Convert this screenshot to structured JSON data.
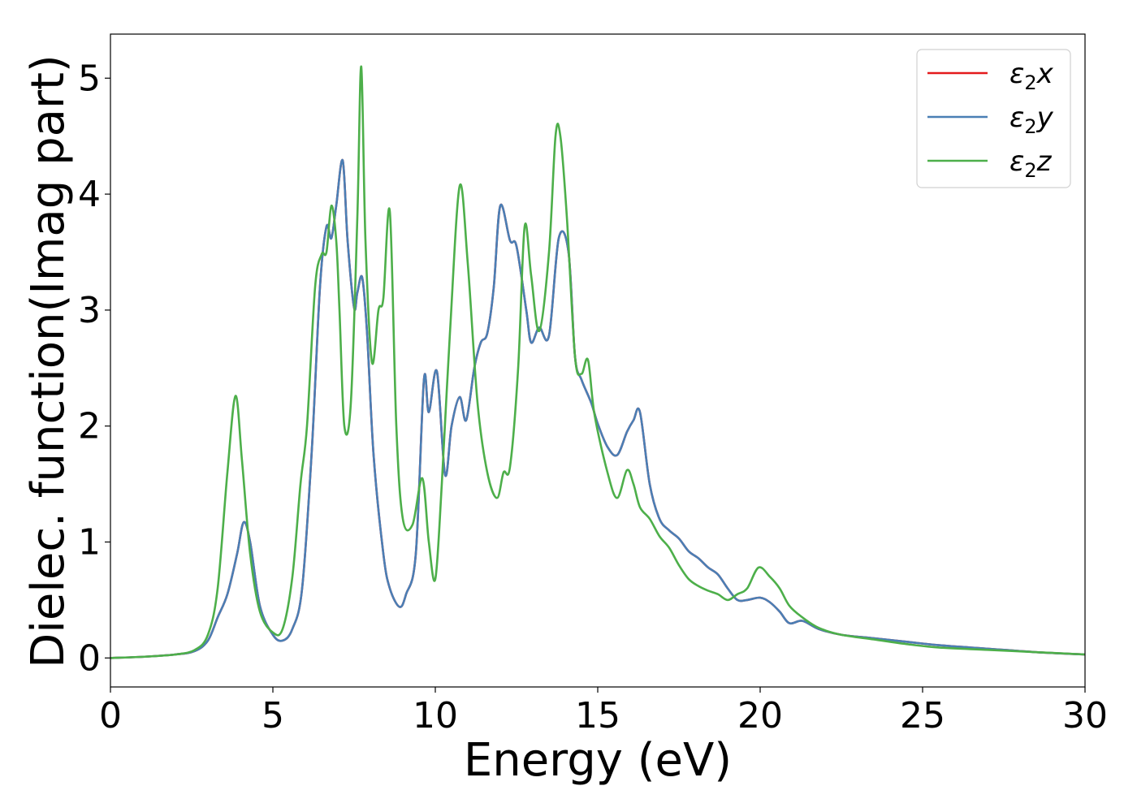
{
  "chart_data": {
    "type": "line",
    "xlabel": "Energy (eV)",
    "ylabel": "Dielec. function(Imag part)",
    "xlim": [
      0,
      30
    ],
    "ylim": [
      -0.25,
      5.38
    ],
    "xticks": [
      0,
      5,
      10,
      15,
      20,
      25,
      30
    ],
    "yticks": [
      0,
      1,
      2,
      3,
      4,
      5
    ],
    "grid": false,
    "legend_position": "top-right",
    "series": [
      {
        "name": "ε2x",
        "legend": {
          "base": "ε",
          "sub": "2",
          "var": "x"
        },
        "color": "#e41a1c",
        "x": [
          0,
          1,
          2,
          2.6,
          3,
          3.3,
          3.6,
          3.9,
          4.1,
          4.3,
          4.6,
          5,
          5.3,
          5.6,
          5.9,
          6.2,
          6.45,
          6.65,
          6.8,
          6.95,
          7.15,
          7.3,
          7.5,
          7.6,
          7.75,
          7.9,
          8.1,
          8.4,
          8.6,
          8.9,
          9.1,
          9.4,
          9.65,
          9.8,
          10.05,
          10.3,
          10.5,
          10.75,
          10.95,
          11.2,
          11.4,
          11.6,
          11.8,
          12,
          12.3,
          12.5,
          12.8,
          12.95,
          13.2,
          13.5,
          13.8,
          14.1,
          14.3,
          14.5,
          14.8,
          15,
          15.3,
          15.6,
          15.9,
          16.1,
          16.3,
          16.6,
          16.9,
          17.2,
          17.5,
          17.8,
          18.1,
          18.4,
          18.7,
          19,
          19.3,
          19.6,
          20,
          20.3,
          20.6,
          20.9,
          21.3,
          21.8,
          22.5,
          23.5,
          24.5,
          25.5,
          27,
          28.5,
          30
        ],
        "values": [
          0,
          0.01,
          0.03,
          0.06,
          0.15,
          0.35,
          0.55,
          0.9,
          1.17,
          1.0,
          0.45,
          0.2,
          0.15,
          0.25,
          0.6,
          1.8,
          3.2,
          3.72,
          3.62,
          3.9,
          4.29,
          3.6,
          3.02,
          3.15,
          3.28,
          2.8,
          1.75,
          0.9,
          0.6,
          0.44,
          0.55,
          0.9,
          2.4,
          2.12,
          2.47,
          1.58,
          2.0,
          2.25,
          2.05,
          2.5,
          2.72,
          2.8,
          3.2,
          3.9,
          3.6,
          3.55,
          3.0,
          2.72,
          2.85,
          2.78,
          3.62,
          3.5,
          2.6,
          2.4,
          2.2,
          2.02,
          1.82,
          1.75,
          1.95,
          2.05,
          2.12,
          1.5,
          1.2,
          1.1,
          1.03,
          0.92,
          0.86,
          0.78,
          0.72,
          0.6,
          0.5,
          0.5,
          0.52,
          0.48,
          0.4,
          0.3,
          0.32,
          0.25,
          0.2,
          0.17,
          0.14,
          0.11,
          0.08,
          0.05,
          0.03
        ]
      },
      {
        "name": "ε2y",
        "legend": {
          "base": "ε",
          "sub": "2",
          "var": "y"
        },
        "color": "#4a7fb5",
        "x": [
          0,
          1,
          2,
          2.6,
          3,
          3.3,
          3.6,
          3.9,
          4.1,
          4.3,
          4.6,
          5,
          5.3,
          5.6,
          5.9,
          6.2,
          6.45,
          6.65,
          6.8,
          6.95,
          7.15,
          7.3,
          7.5,
          7.6,
          7.75,
          7.9,
          8.1,
          8.4,
          8.6,
          8.9,
          9.1,
          9.4,
          9.65,
          9.8,
          10.05,
          10.3,
          10.5,
          10.75,
          10.95,
          11.2,
          11.4,
          11.6,
          11.8,
          12,
          12.3,
          12.5,
          12.8,
          12.95,
          13.2,
          13.5,
          13.8,
          14.1,
          14.3,
          14.5,
          14.8,
          15,
          15.3,
          15.6,
          15.9,
          16.1,
          16.3,
          16.6,
          16.9,
          17.2,
          17.5,
          17.8,
          18.1,
          18.4,
          18.7,
          19,
          19.3,
          19.6,
          20,
          20.3,
          20.6,
          20.9,
          21.3,
          21.8,
          22.5,
          23.5,
          24.5,
          25.5,
          27,
          28.5,
          30
        ],
        "values": [
          0,
          0.01,
          0.03,
          0.06,
          0.15,
          0.35,
          0.55,
          0.9,
          1.17,
          1.0,
          0.45,
          0.2,
          0.15,
          0.25,
          0.6,
          1.8,
          3.2,
          3.72,
          3.62,
          3.9,
          4.29,
          3.6,
          3.02,
          3.15,
          3.28,
          2.8,
          1.75,
          0.9,
          0.6,
          0.44,
          0.55,
          0.9,
          2.4,
          2.12,
          2.47,
          1.58,
          2.0,
          2.25,
          2.05,
          2.5,
          2.72,
          2.8,
          3.2,
          3.9,
          3.6,
          3.55,
          3.0,
          2.72,
          2.85,
          2.78,
          3.62,
          3.5,
          2.6,
          2.4,
          2.2,
          2.02,
          1.82,
          1.75,
          1.95,
          2.05,
          2.12,
          1.5,
          1.2,
          1.1,
          1.03,
          0.92,
          0.86,
          0.78,
          0.72,
          0.6,
          0.5,
          0.5,
          0.52,
          0.48,
          0.4,
          0.3,
          0.32,
          0.25,
          0.2,
          0.17,
          0.14,
          0.11,
          0.08,
          0.05,
          0.03
        ]
      },
      {
        "name": "ε2z",
        "legend": {
          "base": "ε",
          "sub": "2",
          "var": "z"
        },
        "color": "#4daf4a",
        "x": [
          0,
          1,
          2,
          2.6,
          3,
          3.3,
          3.6,
          3.85,
          4.05,
          4.3,
          4.6,
          5,
          5.3,
          5.6,
          5.85,
          6.05,
          6.3,
          6.5,
          6.65,
          6.8,
          6.95,
          7.05,
          7.2,
          7.4,
          7.6,
          7.72,
          7.85,
          8.05,
          8.25,
          8.4,
          8.6,
          8.8,
          9.0,
          9.3,
          9.6,
          9.8,
          10.0,
          10.2,
          10.45,
          10.75,
          11.0,
          11.3,
          11.6,
          11.9,
          12.1,
          12.3,
          12.55,
          12.75,
          12.95,
          13.2,
          13.5,
          13.7,
          13.85,
          14.05,
          14.3,
          14.5,
          14.7,
          14.9,
          15.3,
          15.6,
          15.9,
          16.1,
          16.3,
          16.6,
          16.9,
          17.2,
          17.5,
          17.8,
          18.1,
          18.4,
          18.7,
          19.0,
          19.3,
          19.6,
          19.95,
          20.3,
          20.6,
          20.9,
          21.3,
          21.8,
          22.5,
          23.5,
          24.5,
          25.5,
          27,
          28.5,
          30
        ],
        "values": [
          0,
          0.01,
          0.03,
          0.07,
          0.2,
          0.6,
          1.6,
          2.26,
          1.7,
          0.9,
          0.4,
          0.22,
          0.25,
          0.7,
          1.5,
          2.0,
          3.2,
          3.48,
          3.5,
          3.9,
          3.6,
          3.0,
          2.0,
          2.2,
          3.8,
          5.1,
          3.6,
          2.55,
          3.0,
          3.1,
          3.85,
          2.0,
          1.2,
          1.15,
          1.55,
          1.0,
          0.68,
          1.5,
          2.8,
          4.07,
          3.4,
          2.2,
          1.6,
          1.38,
          1.6,
          1.65,
          2.5,
          3.72,
          3.3,
          2.82,
          3.5,
          4.5,
          4.5,
          3.8,
          2.6,
          2.45,
          2.57,
          2.1,
          1.6,
          1.38,
          1.62,
          1.5,
          1.3,
          1.2,
          1.05,
          0.95,
          0.8,
          0.68,
          0.62,
          0.58,
          0.55,
          0.5,
          0.55,
          0.6,
          0.78,
          0.7,
          0.6,
          0.45,
          0.35,
          0.26,
          0.2,
          0.16,
          0.12,
          0.09,
          0.07,
          0.05,
          0.03
        ]
      }
    ]
  }
}
